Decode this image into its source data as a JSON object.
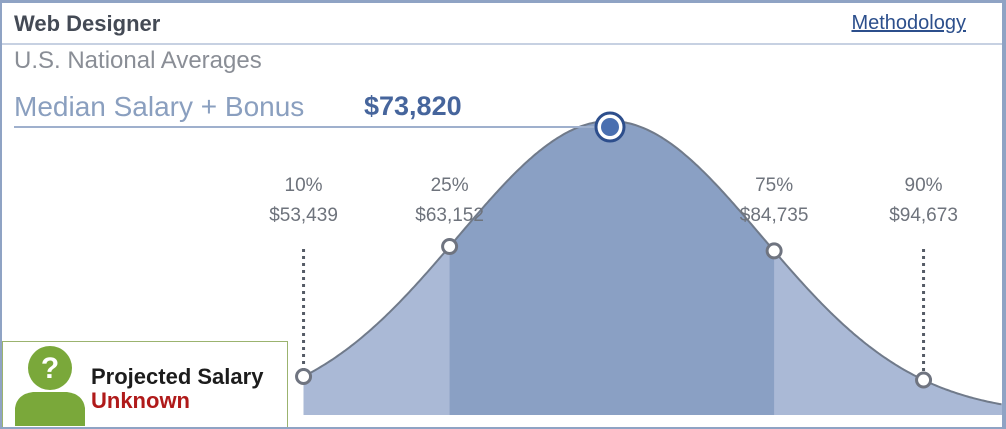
{
  "header": {
    "title": "Web Designer",
    "methodology_link": "Methodology"
  },
  "subtitle": "U.S. National Averages",
  "median": {
    "label": "Median Salary + Bonus",
    "value": "$73,820"
  },
  "badge": {
    "icon": "question-person-icon",
    "line1": "Projected Salary",
    "line2": "Unknown"
  },
  "colors": {
    "curve_inner": "#8aa0c4",
    "curve_outer": "#aab9d6",
    "accent_link": "#2c4f8c",
    "unknown_red": "#b01a1a"
  },
  "chart_data": {
    "type": "area",
    "title": "",
    "xlabel": "",
    "ylabel": "",
    "median": {
      "label": "Median Salary + Bonus",
      "value": 73820,
      "display": "$73,820"
    },
    "percentiles": [
      {
        "label": "10%",
        "value": 53439,
        "display": "$53,439"
      },
      {
        "label": "25%",
        "value": 63152,
        "display": "$63,152"
      },
      {
        "label": "75%",
        "value": 84735,
        "display": "$84,735"
      },
      {
        "label": "90%",
        "value": 94673,
        "display": "$94,673"
      }
    ],
    "grid": false,
    "legend": "none"
  }
}
